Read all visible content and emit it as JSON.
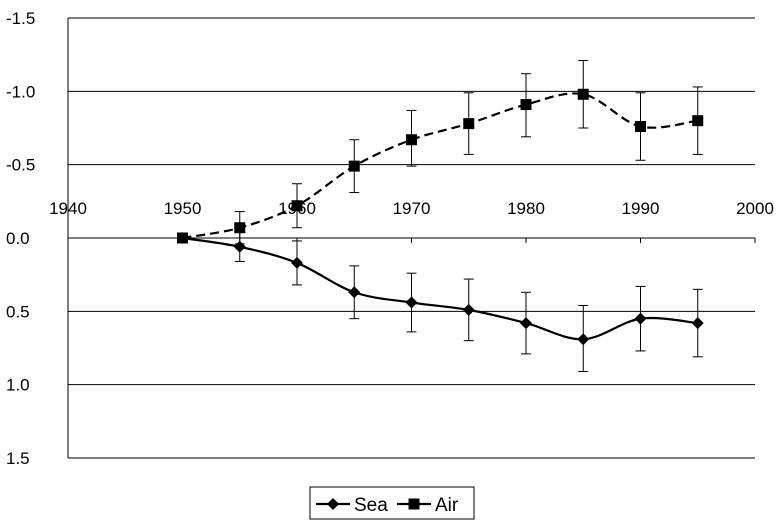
{
  "chart_data": {
    "type": "line",
    "x": [
      1950,
      1955,
      1960,
      1965,
      1970,
      1975,
      1980,
      1985,
      1990,
      1995
    ],
    "xlim": [
      1940,
      2000
    ],
    "xticks": [
      "1940",
      "1950",
      "1960",
      "1970",
      "1980",
      "1990",
      "2000"
    ],
    "ylim": [
      1.5,
      -1.5
    ],
    "yticks": [
      "-1.5",
      "-1.0",
      "-0.5",
      "0.0",
      "0.5",
      "1.0",
      "1.5"
    ],
    "y_axis_reversed": true,
    "grid": "horizontal",
    "legend_position": "bottom",
    "series": [
      {
        "name": "Sea",
        "marker": "diamond",
        "line_style": "solid",
        "values": [
          0.0,
          0.06,
          0.17,
          0.37,
          0.44,
          0.49,
          0.58,
          0.69,
          0.55,
          0.58
        ],
        "error_low": [
          0.0,
          0.16,
          0.32,
          0.55,
          0.64,
          0.7,
          0.79,
          0.91,
          0.77,
          0.81
        ],
        "error_high": [
          0.0,
          -0.04,
          0.02,
          0.19,
          0.24,
          0.28,
          0.37,
          0.46,
          0.33,
          0.35
        ]
      },
      {
        "name": "Air",
        "marker": "square",
        "line_style": "dashed",
        "values": [
          0.0,
          -0.07,
          -0.22,
          -0.49,
          -0.67,
          -0.78,
          -0.91,
          -0.98,
          -0.76,
          -0.8
        ],
        "error_low": [
          0.0,
          0.04,
          -0.07,
          -0.31,
          -0.49,
          -0.57,
          -0.69,
          -0.75,
          -0.53,
          -0.57
        ],
        "error_high": [
          0.0,
          -0.18,
          -0.37,
          -0.67,
          -0.87,
          -0.99,
          -1.12,
          -1.21,
          -0.99,
          -1.03
        ]
      }
    ],
    "colors": {
      "line": "#000000",
      "grid": "#000000",
      "background": "#ffffff"
    }
  }
}
